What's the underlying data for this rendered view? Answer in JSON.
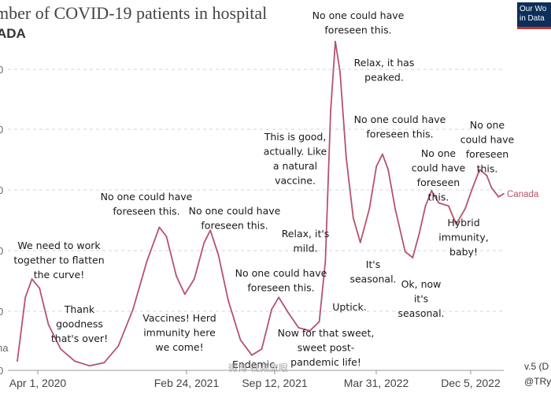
{
  "header": {
    "title": "mber of COVID-19 patients in hospital",
    "subtitle": "ADA",
    "logo_line1": "Our Wo",
    "logo_line2": "in Data"
  },
  "credit": {
    "line1": "v.5 (D",
    "line2": "@TRy"
  },
  "watermark": "微博 视频旅眼",
  "colors": {
    "series": "#b5536b",
    "grid": "#d4d4d4",
    "logo_bg": "#0b2f5a",
    "logo_accent": "#c83232"
  },
  "chart_data": {
    "type": "line",
    "title": "mber of COVID-19 patients in hospital",
    "subtitle": "ADA",
    "x_ticks": [
      "Apr 1, 2020",
      "Feb 24, 2021",
      "Sep 12, 2021",
      "Mar 31, 2022",
      "Dec 5, 2022"
    ],
    "y_ticks": [
      "0",
      "0",
      "0",
      "0",
      "0",
      "0"
    ],
    "y_tick_fragment": "na",
    "grid": true,
    "series": [
      {
        "name": "Canada",
        "points": [
          [
            "2020-03-15",
            300
          ],
          [
            "2020-04-01",
            2400
          ],
          [
            "2020-04-15",
            3000
          ],
          [
            "2020-05-01",
            2700
          ],
          [
            "2020-05-20",
            1500
          ],
          [
            "2020-06-15",
            700
          ],
          [
            "2020-07-15",
            300
          ],
          [
            "2020-08-15",
            150
          ],
          [
            "2020-09-15",
            250
          ],
          [
            "2020-10-15",
            800
          ],
          [
            "2020-11-15",
            2000
          ],
          [
            "2020-12-15",
            3600
          ],
          [
            "2021-01-10",
            4700
          ],
          [
            "2021-01-25",
            4400
          ],
          [
            "2021-02-15",
            3100
          ],
          [
            "2021-03-05",
            2500
          ],
          [
            "2021-03-25",
            3000
          ],
          [
            "2021-04-15",
            4200
          ],
          [
            "2021-04-28",
            4600
          ],
          [
            "2021-05-15",
            3800
          ],
          [
            "2021-06-05",
            2300
          ],
          [
            "2021-07-01",
            1000
          ],
          [
            "2021-07-25",
            500
          ],
          [
            "2021-08-15",
            700
          ],
          [
            "2021-09-05",
            2000
          ],
          [
            "2021-09-20",
            2400
          ],
          [
            "2021-10-10",
            1900
          ],
          [
            "2021-11-01",
            1400
          ],
          [
            "2021-11-25",
            1300
          ],
          [
            "2021-12-15",
            1600
          ],
          [
            "2021-12-28",
            3600
          ],
          [
            "2022-01-08",
            8500
          ],
          [
            "2022-01-18",
            10800
          ],
          [
            "2022-01-28",
            9800
          ],
          [
            "2022-02-10",
            7000
          ],
          [
            "2022-02-25",
            5000
          ],
          [
            "2022-03-12",
            4200
          ],
          [
            "2022-03-31",
            5300
          ],
          [
            "2022-04-15",
            6700
          ],
          [
            "2022-04-28",
            7100
          ],
          [
            "2022-05-10",
            6600
          ],
          [
            "2022-05-25",
            5300
          ],
          [
            "2022-06-15",
            3900
          ],
          [
            "2022-07-01",
            3700
          ],
          [
            "2022-07-15",
            4500
          ],
          [
            "2022-07-28",
            5400
          ],
          [
            "2022-08-10",
            5900
          ],
          [
            "2022-08-25",
            5500
          ],
          [
            "2022-09-15",
            5400
          ],
          [
            "2022-10-01",
            4800
          ],
          [
            "2022-10-20",
            5300
          ],
          [
            "2022-11-05",
            6000
          ],
          [
            "2022-11-20",
            6600
          ],
          [
            "2022-12-05",
            6400
          ],
          [
            "2022-12-15",
            6000
          ],
          [
            "2022-12-30",
            5700
          ],
          [
            "2023-01-10",
            5800
          ]
        ]
      }
    ],
    "series_label": "Canada",
    "annotations": [
      {
        "id": "ann-flatten",
        "date": "2020-04-15",
        "lines": [
          "We need to work",
          "together to flatten",
          "the curve!"
        ]
      },
      {
        "id": "ann-thank",
        "date": "2020-07-05",
        "lines": [
          "Thank",
          "goodness",
          "that's over!"
        ]
      },
      {
        "id": "ann-foreseen-1",
        "date": "2021-01-10",
        "lines": [
          "No one could have",
          "foreseen this."
        ]
      },
      {
        "id": "ann-vaccines",
        "date": "2021-04-01",
        "lines": [
          "Vaccines! Herd",
          "immunity here",
          "we come!"
        ]
      },
      {
        "id": "ann-foreseen-2",
        "date": "2021-05-20",
        "lines": [
          "No one could have",
          "foreseen this."
        ]
      },
      {
        "id": "ann-endemic",
        "date": "2021-08-15",
        "lines": [
          "Endemic."
        ]
      },
      {
        "id": "ann-foreseen-3",
        "date": "2021-10-20",
        "lines": [
          "No one could have",
          "foreseen this."
        ]
      },
      {
        "id": "ann-mild",
        "date": "2021-11-15",
        "lines": [
          "Relax, it's",
          "mild."
        ]
      },
      {
        "id": "ann-good",
        "date": "2021-11-01",
        "lines": [
          "This is good,",
          "actually. Like",
          "a natural",
          "vaccine."
        ]
      },
      {
        "id": "ann-sweet",
        "date": "2021-12-05",
        "lines": [
          "Now for that sweet,",
          "sweet post-",
          "pandemic life!"
        ]
      },
      {
        "id": "ann-uptick",
        "date": "2022-01-01",
        "lines": [
          "Uptick."
        ]
      },
      {
        "id": "ann-foreseen-top",
        "date": "2022-01-20",
        "lines": [
          "No one could have",
          "foreseen this."
        ]
      },
      {
        "id": "ann-peaked",
        "date": "2022-03-05",
        "lines": [
          "Relax, it has",
          "peaked."
        ]
      },
      {
        "id": "ann-foreseen-4",
        "date": "2022-04-25",
        "lines": [
          "No one could have",
          "foreseen this."
        ]
      },
      {
        "id": "ann-seasonal-1",
        "date": "2022-03-10",
        "lines": [
          "It's",
          "seasonal."
        ]
      },
      {
        "id": "ann-ok-now",
        "date": "2022-06-25",
        "lines": [
          "Ok, now",
          "it's",
          "seasonal."
        ]
      },
      {
        "id": "ann-foreseen-5",
        "date": "2022-07-30",
        "lines": [
          "No one",
          "could have",
          "foreseen",
          "this."
        ]
      },
      {
        "id": "ann-hybrid",
        "date": "2022-09-20",
        "lines": [
          "Hybrid",
          "immunity,",
          "baby!"
        ]
      },
      {
        "id": "ann-foreseen-6",
        "date": "2022-11-20",
        "lines": [
          "No one",
          "could have",
          "foreseen",
          "this."
        ]
      }
    ]
  }
}
